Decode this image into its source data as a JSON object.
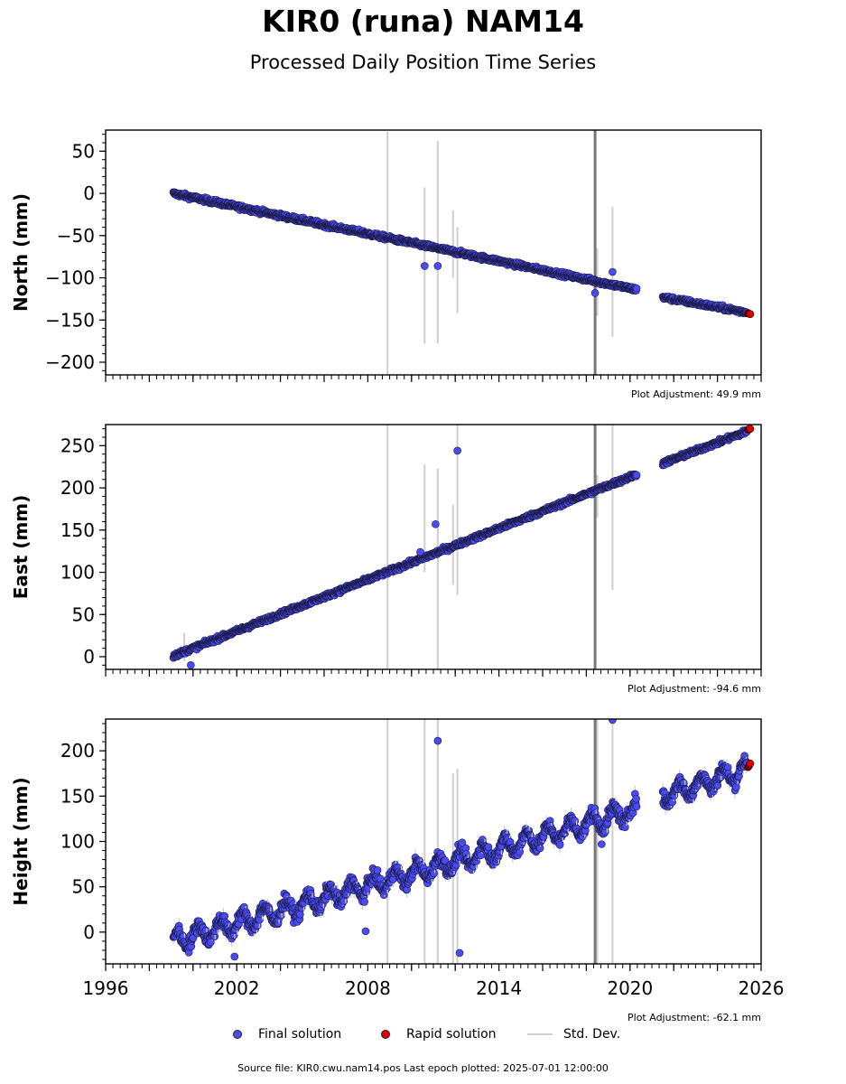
{
  "title": "KIR0 (runa) NAM14",
  "subtitle": "Processed Daily Position Time Series",
  "legend": {
    "final": "Final solution",
    "rapid": "Rapid solution",
    "stddev": "Std. Dev."
  },
  "footer": "Source file: KIR0.cwu.nam14.pos  Last epoch plotted: 2025-07-01 12:00:00",
  "colors": {
    "final": "#4b4bf5",
    "rapid": "#e00000",
    "stddev": "#cfcfcf",
    "offset_line": "#777777"
  },
  "chart_data": [
    {
      "type": "scatter",
      "ylabel": "North (mm)",
      "xlim": [
        1996,
        2026
      ],
      "ylim": [
        -215,
        75
      ],
      "yticks": [
        50,
        0,
        -50,
        -100,
        -150,
        -200
      ],
      "adjustment": "Plot Adjustment: 49.9 mm",
      "equipment_change_x": 2018.4,
      "series": [
        {
          "name": "Final solution",
          "segments": [
            {
              "x": [
                1999.1,
                2020.3
              ],
              "y": [
                0,
                -114
              ]
            },
            {
              "x": [
                2021.5,
                2025.35
              ],
              "y": [
                -123,
                -141
              ]
            }
          ],
          "scatter": 2.5,
          "outliers": [
            {
              "x": 2010.6,
              "y": -86
            },
            {
              "x": 2011.2,
              "y": -86
            },
            {
              "x": 2019.2,
              "y": -93
            },
            {
              "x": 2018.4,
              "y": -118
            }
          ]
        },
        {
          "name": "Rapid solution",
          "segments": [
            {
              "x": [
                2025.4,
                2025.5
              ],
              "y": [
                -142,
                -143
              ]
            }
          ]
        }
      ],
      "stddev_bars": [
        {
          "x": 2008.9,
          "ylo": -215,
          "yhi": 73
        },
        {
          "x": 2010.6,
          "ylo": -178,
          "yhi": 7
        },
        {
          "x": 2011.2,
          "ylo": -178,
          "yhi": 62
        },
        {
          "x": 2012.1,
          "ylo": -142,
          "yhi": -40
        },
        {
          "x": 2011.9,
          "ylo": -100,
          "yhi": -20
        },
        {
          "x": 2018.5,
          "ylo": -145,
          "yhi": -65
        },
        {
          "x": 2019.2,
          "ylo": -170,
          "yhi": -16
        }
      ]
    },
    {
      "type": "scatter",
      "ylabel": "East (mm)",
      "xlim": [
        1996,
        2026
      ],
      "ylim": [
        -15,
        275
      ],
      "yticks": [
        250,
        200,
        150,
        100,
        50,
        0
      ],
      "adjustment": "Plot Adjustment: -94.6 mm",
      "equipment_change_x": 2018.4,
      "series": [
        {
          "name": "Final solution",
          "segments": [
            {
              "x": [
                1999.1,
                2020.3
              ],
              "y": [
                1,
                216
              ]
            },
            {
              "x": [
                2021.5,
                2025.35
              ],
              "y": [
                229,
                267
              ]
            }
          ],
          "scatter": 2.5,
          "outliers": [
            {
              "x": 2012.1,
              "y": 244
            },
            {
              "x": 2011.1,
              "y": 157
            },
            {
              "x": 1999.9,
              "y": -10
            },
            {
              "x": 2010.4,
              "y": 124
            }
          ]
        },
        {
          "name": "Rapid solution",
          "segments": [
            {
              "x": [
                2025.4,
                2025.5
              ],
              "y": [
                269,
                270
              ]
            }
          ]
        }
      ],
      "stddev_bars": [
        {
          "x": 2008.9,
          "ylo": -15,
          "yhi": 275
        },
        {
          "x": 2010.6,
          "ylo": 100,
          "yhi": 228
        },
        {
          "x": 2011.2,
          "ylo": -15,
          "yhi": 223
        },
        {
          "x": 2011.9,
          "ylo": 85,
          "yhi": 180
        },
        {
          "x": 2012.1,
          "ylo": 73,
          "yhi": 275
        },
        {
          "x": 2018.5,
          "ylo": 165,
          "yhi": 215
        },
        {
          "x": 2019.2,
          "ylo": 79,
          "yhi": 275
        },
        {
          "x": 1999.6,
          "ylo": -5,
          "yhi": 28
        }
      ]
    },
    {
      "type": "scatter",
      "ylabel": "Height (mm)",
      "xlabel": "",
      "xlim": [
        1996,
        2026
      ],
      "ylim": [
        -35,
        235
      ],
      "yticks": [
        200,
        150,
        100,
        50,
        0
      ],
      "xticks": [
        1996,
        2002,
        2008,
        2014,
        2020,
        2026
      ],
      "adjustment": "Plot Adjustment: -62.1 mm",
      "equipment_change_x": 2018.4,
      "series": [
        {
          "name": "Final solution",
          "segments": [
            {
              "x": [
                1999.1,
                2020.3
              ],
              "y": [
                -10,
                135
              ]
            },
            {
              "x": [
                2021.5,
                2025.35
              ],
              "y": [
                150,
                180
              ]
            }
          ],
          "scatter": 16,
          "outliers": [
            {
              "x": 2011.2,
              "y": 211
            },
            {
              "x": 2012.2,
              "y": -23
            },
            {
              "x": 2019.2,
              "y": 234
            },
            {
              "x": 2007.9,
              "y": 1
            },
            {
              "x": 2001.9,
              "y": -27
            },
            {
              "x": 2018.7,
              "y": 97
            }
          ]
        },
        {
          "name": "Rapid solution",
          "segments": [
            {
              "x": [
                2025.4,
                2025.5
              ],
              "y": [
                182,
                186
              ]
            }
          ]
        }
      ],
      "stddev_bars": [
        {
          "x": 2008.9,
          "ylo": -35,
          "yhi": 235
        },
        {
          "x": 2010.6,
          "ylo": -35,
          "yhi": 235
        },
        {
          "x": 2011.2,
          "ylo": -35,
          "yhi": 235
        },
        {
          "x": 2011.9,
          "ylo": -35,
          "yhi": 175
        },
        {
          "x": 2012.1,
          "ylo": -35,
          "yhi": 180
        },
        {
          "x": 2018.5,
          "ylo": -35,
          "yhi": 235
        },
        {
          "x": 2019.2,
          "ylo": -35,
          "yhi": 235
        }
      ]
    }
  ]
}
